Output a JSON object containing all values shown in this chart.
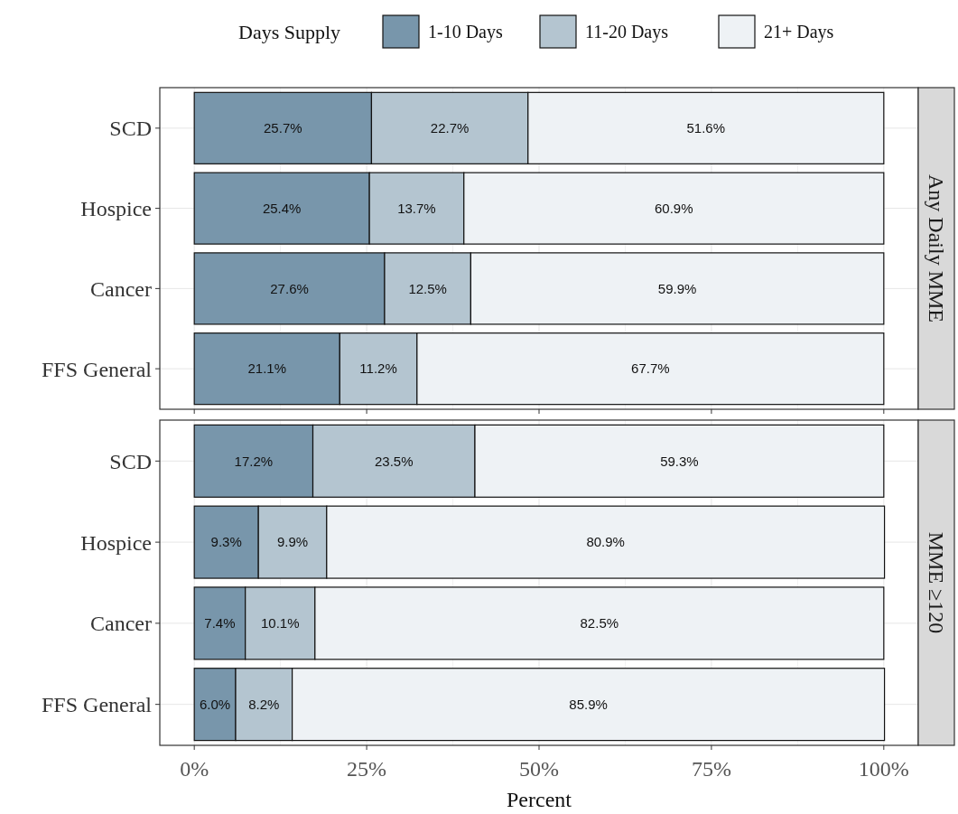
{
  "chart_data": [
    {
      "type": "bar",
      "orientation": "horizontal",
      "stacked": true,
      "title": "Any Daily MME",
      "legend_title": "Days Supply",
      "legend": "top",
      "grid": true,
      "tick_labels": "y",
      "categories": [
        "SCD",
        "Hospice",
        "Cancer",
        "FFS General"
      ],
      "xlim": [
        -5,
        105
      ],
      "xticks": [
        {
          "value": 0,
          "label": null
        },
        {
          "value": 25,
          "label": null
        },
        {
          "value": 50,
          "label": null
        },
        {
          "value": 75,
          "label": null
        },
        {
          "value": 100,
          "label": null
        }
      ],
      "series": [
        {
          "name": "1-10 Days",
          "color": "#7896ab",
          "values": [
            25.7,
            25.4,
            27.6,
            21.1
          ],
          "value_labels": [
            "25.7%",
            "25.4%",
            "27.6%",
            "21.1%"
          ]
        },
        {
          "name": "11-20 Days",
          "color": "#b4c5d0",
          "values": [
            22.7,
            13.7,
            12.5,
            11.2
          ],
          "value_labels": [
            "22.7%",
            "13.7%",
            "12.5%",
            "11.2%"
          ]
        },
        {
          "name": "21+ Days",
          "color": "#eef2f5",
          "values": [
            51.6,
            60.9,
            59.9,
            67.7
          ],
          "value_labels": [
            "51.6%",
            "60.9%",
            "59.9%",
            "67.7%"
          ]
        }
      ]
    },
    {
      "type": "bar",
      "orientation": "horizontal",
      "stacked": true,
      "title": "MME ≥120",
      "xlabel": "Percent",
      "grid": true,
      "categories": [
        "SCD",
        "Hospice",
        "Cancer",
        "FFS General"
      ],
      "xlim": [
        -5,
        105
      ],
      "xticks": [
        {
          "value": 0,
          "label": "0%"
        },
        {
          "value": 25,
          "label": "25%"
        },
        {
          "value": 50,
          "label": "50%"
        },
        {
          "value": 75,
          "label": "75%"
        },
        {
          "value": 100,
          "label": "100%"
        }
      ],
      "series": [
        {
          "color": "#7896ab",
          "values": [
            17.2,
            9.3,
            7.4,
            6.0
          ],
          "value_labels": [
            "17.2%",
            "9.3%",
            "7.4%",
            "6.0%"
          ]
        },
        {
          "color": "#b4c5d0",
          "values": [
            23.5,
            9.9,
            10.1,
            8.2
          ],
          "value_labels": [
            "23.5%",
            "9.9%",
            "10.1%",
            "8.2%"
          ]
        },
        {
          "color": "#eef2f5",
          "values": [
            59.3,
            80.9,
            82.5,
            85.9
          ],
          "value_labels": [
            "59.3%",
            "80.9%",
            "82.5%",
            "85.9%"
          ]
        }
      ]
    }
  ]
}
